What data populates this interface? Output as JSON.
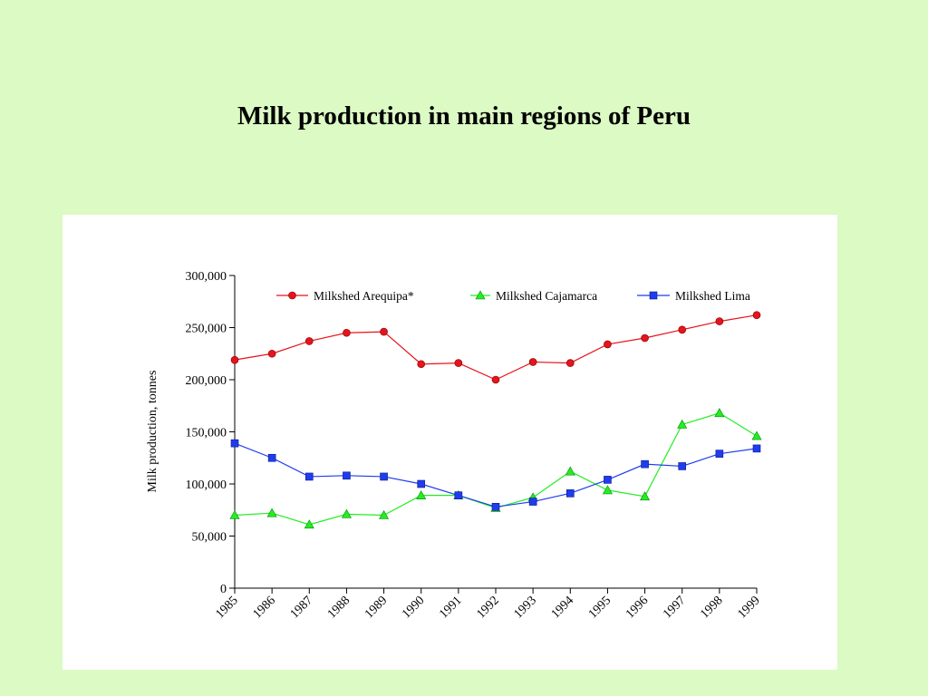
{
  "slide": {
    "title": "Milk production in main regions of Peru"
  },
  "colors": {
    "background": "#dcfac4",
    "panel": "#ffffff",
    "arequipa": "#e8131b",
    "cajamarca": "#22ee22",
    "lima": "#1f3cf0"
  },
  "chart_data": {
    "type": "line",
    "title": "",
    "xlabel": "",
    "ylabel": "Milk production, tonnes",
    "x": [
      "1985",
      "1986",
      "1987",
      "1988",
      "1989",
      "1990",
      "1991",
      "1992",
      "1993",
      "1994",
      "1995",
      "1996",
      "1997",
      "1998",
      "1999"
    ],
    "ylim": [
      0,
      300000
    ],
    "yticks": [
      "0",
      "50,000",
      "100,000",
      "150,000",
      "200,000",
      "250,000",
      "300,000"
    ],
    "ytick_values": [
      0,
      50000,
      100000,
      150000,
      200000,
      250000,
      300000
    ],
    "grid": false,
    "legend": "top-right",
    "series": [
      {
        "name": "Milkshed Arequipa*",
        "marker": "circle",
        "color": "#e8131b",
        "values": [
          219000,
          225000,
          237000,
          245000,
          246000,
          215000,
          216000,
          200000,
          217000,
          216000,
          234000,
          240000,
          248000,
          256000,
          262000
        ]
      },
      {
        "name": "Milkshed Cajamarca",
        "marker": "triangle",
        "color": "#22ee22",
        "values": [
          70000,
          72000,
          61000,
          71000,
          70000,
          89000,
          89000,
          77000,
          87000,
          112000,
          94000,
          88000,
          157000,
          168000,
          146000
        ]
      },
      {
        "name": "Milkshed Lima",
        "marker": "square",
        "color": "#1f3cf0",
        "values": [
          139000,
          125000,
          107000,
          108000,
          107000,
          100000,
          89000,
          78000,
          83000,
          91000,
          104000,
          119000,
          117000,
          129000,
          134000
        ]
      }
    ]
  }
}
